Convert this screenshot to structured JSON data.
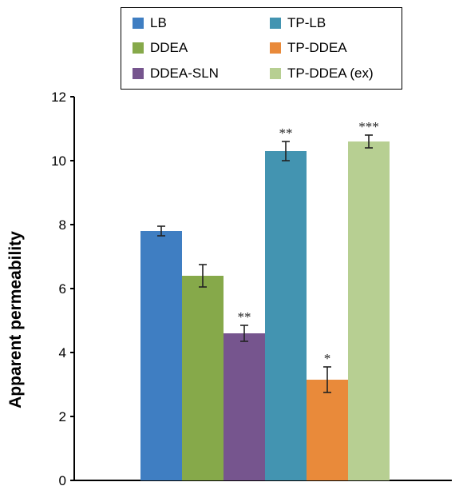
{
  "chart_data": {
    "type": "bar",
    "title": "",
    "xlabel": "",
    "ylabel": "Apparent permeability",
    "ylim": [
      0,
      12
    ],
    "yticks": [
      "0",
      "2",
      "4",
      "6",
      "8",
      "10",
      "12"
    ],
    "grid": false,
    "legend_position": "top",
    "series": [
      {
        "name": "LB",
        "value": 7.8,
        "error": 0.15,
        "color": "#3f7ec2",
        "significance": ""
      },
      {
        "name": "DDEA",
        "value": 6.4,
        "error": 0.35,
        "color": "#86a94a",
        "significance": ""
      },
      {
        "name": "DDEA-SLN",
        "value": 4.6,
        "error": 0.25,
        "color": "#76558e",
        "significance": "**"
      },
      {
        "name": "TP-LB",
        "value": 10.3,
        "error": 0.3,
        "color": "#4394b1",
        "significance": "**"
      },
      {
        "name": "TP-DDEA",
        "value": 3.15,
        "error": 0.4,
        "color": "#e98a3a",
        "significance": "*"
      },
      {
        "name": "TP-DDEA (ex)",
        "value": 10.6,
        "error": 0.2,
        "color": "#b7cf92",
        "significance": "***"
      }
    ]
  }
}
